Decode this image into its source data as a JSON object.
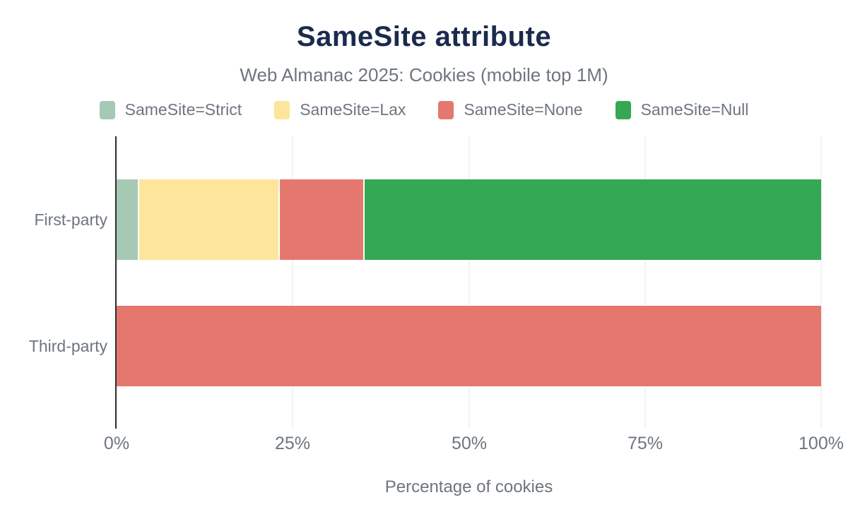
{
  "header": {
    "title": "SameSite attribute",
    "subtitle": "Web Almanac 2025: Cookies (mobile top 1M)"
  },
  "legend": [
    {
      "label": "SameSite=Strict",
      "color": "#a6c9b5"
    },
    {
      "label": "SameSite=Lax",
      "color": "#fde59b"
    },
    {
      "label": "SameSite=None",
      "color": "#e4786f"
    },
    {
      "label": "SameSite=Null",
      "color": "#34a853"
    }
  ],
  "chart_data": {
    "type": "bar",
    "orientation": "horizontal",
    "stacked": true,
    "title": "SameSite attribute",
    "subtitle": "Web Almanac 2025: Cookies (mobile top 1M)",
    "categories": [
      "First-party",
      "Third-party"
    ],
    "series": [
      {
        "name": "SameSite=Strict",
        "color": "#a6c9b5",
        "values": [
          3,
          0
        ]
      },
      {
        "name": "SameSite=Lax",
        "color": "#fde59b",
        "values": [
          20,
          0
        ]
      },
      {
        "name": "SameSite=None",
        "color": "#e4786f",
        "values": [
          12,
          100
        ]
      },
      {
        "name": "SameSite=Null",
        "color": "#34a853",
        "values": [
          65,
          0
        ]
      }
    ],
    "xlabel": "Percentage of cookies",
    "ylabel": "",
    "x_ticks": [
      "0%",
      "25%",
      "50%",
      "75%",
      "100%"
    ],
    "xlim": [
      0,
      100
    ],
    "grid": true,
    "legend_position": "top",
    "colors": {
      "title_text": "#1b2a4e",
      "muted_text": "#6e757f",
      "axis_line": "#2d2d2d",
      "gridline": "#f2f3f4",
      "background": "#ffffff"
    }
  }
}
